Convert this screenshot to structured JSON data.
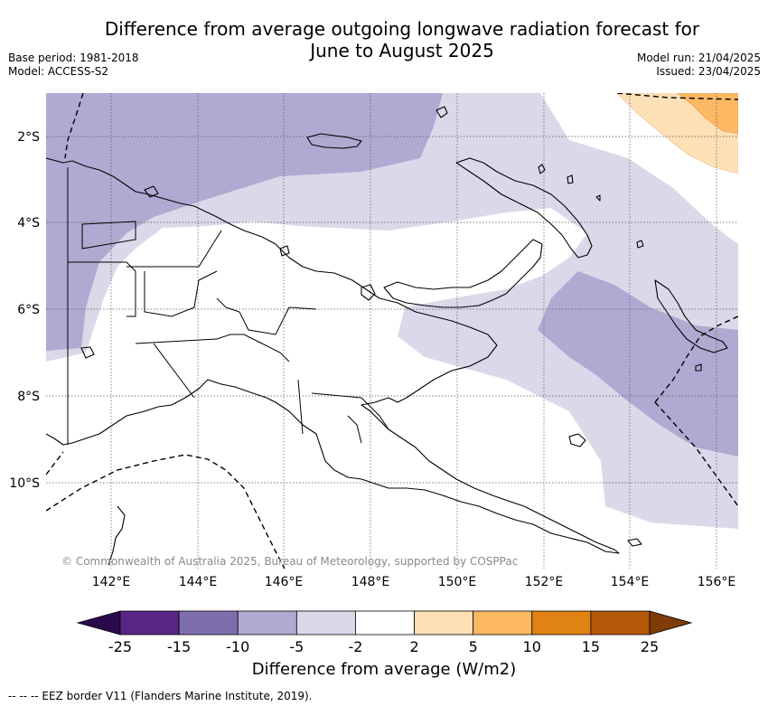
{
  "title_line1": "Difference from average outgoing longwave radiation forecast for",
  "title_line2": "June to August 2025",
  "base_period": "Base period: 1981-2018",
  "model": "Model: ACCESS-S2",
  "model_run": "Model run: 21/04/2025",
  "issued": "Issued: 23/04/2025",
  "copyright": "© Commonwealth of Australia 2025, Bureau of Meteorology, supported by COSPPac",
  "lat_labels": [
    "2°S",
    "4°S",
    "6°S",
    "8°S",
    "10°S"
  ],
  "lon_labels": [
    "142°E",
    "144°E",
    "146°E",
    "148°E",
    "150°E",
    "152°E",
    "154°E",
    "156°E"
  ],
  "colorbar": {
    "title": "Difference from average (W/m2)",
    "tick_labels": [
      "-25",
      "-15",
      "-10",
      "-5",
      "-2",
      "2",
      "5",
      "10",
      "15",
      "25"
    ],
    "colors": [
      "#2a0a4a",
      "#5a2586",
      "#7f6ead",
      "#b0aad2",
      "#d9d9ea",
      "#ffffff",
      "#fee0b6",
      "#fdb863",
      "#e08214",
      "#b35806",
      "#7f3b08"
    ]
  },
  "footnote": "-- -- -- EEZ border V11 (Flanders Marine Institute, 2019)."
}
